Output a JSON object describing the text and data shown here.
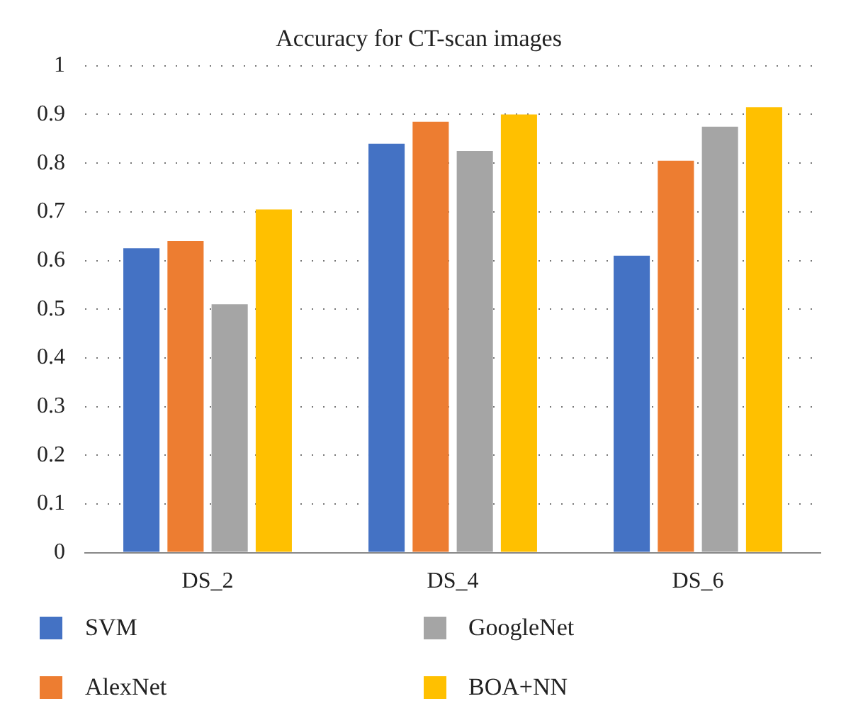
{
  "chart_data": {
    "type": "bar",
    "title": "Accuracy for CT-scan images",
    "categories": [
      "DS_2",
      "DS_4",
      "DS_6"
    ],
    "series": [
      {
        "name": "SVM",
        "color": "#4472c4",
        "values": [
          0.625,
          0.84,
          0.61
        ]
      },
      {
        "name": "AlexNet",
        "color": "#ed7d31",
        "values": [
          0.64,
          0.885,
          0.805
        ]
      },
      {
        "name": "GoogleNet",
        "color": "#a5a5a5",
        "values": [
          0.51,
          0.825,
          0.875
        ]
      },
      {
        "name": "BOA+NN",
        "color": "#ffc000",
        "values": [
          0.705,
          0.9,
          0.915
        ]
      }
    ],
    "ylim": [
      0,
      1
    ],
    "yticks": [
      0,
      0.1,
      0.2,
      0.3,
      0.4,
      0.5,
      0.6,
      0.7,
      0.8,
      0.9,
      1
    ],
    "grid": "y",
    "legend": "bottom"
  }
}
